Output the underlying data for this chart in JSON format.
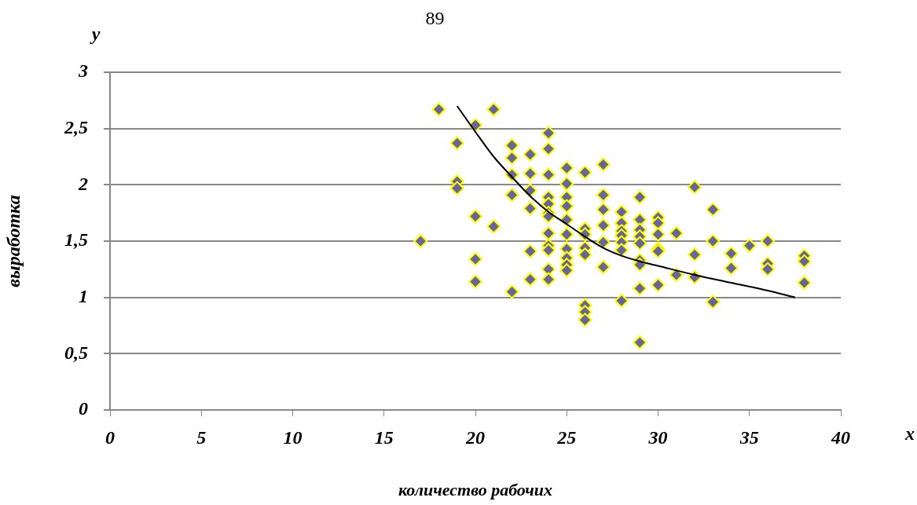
{
  "chart_data": {
    "type": "scatter",
    "xlabel": "количество рабочих",
    "ylabel": "выработка",
    "annotations": [
      "89",
      "y",
      "x"
    ],
    "xlim": [
      0,
      40
    ],
    "xticks": [
      0,
      5,
      10,
      15,
      20,
      25,
      30,
      35,
      40
    ],
    "ylim": [
      0,
      3
    ],
    "yticks": [
      0,
      {
        "value": 0.5,
        "label": "0,5"
      },
      1,
      {
        "value": 1.5,
        "label": "1,5"
      },
      2,
      {
        "value": 2.5,
        "label": "2,5"
      },
      3
    ],
    "grid": "y",
    "legend": false,
    "marker": "diamond",
    "series": [
      {
        "type": "scatter",
        "color": "#666699",
        "x": [
          17,
          18,
          19,
          19,
          19,
          20,
          20,
          20,
          20,
          21,
          21,
          22,
          22,
          22,
          22,
          22,
          23,
          23,
          23,
          23,
          23,
          23,
          24,
          24,
          24,
          24,
          24,
          24,
          24,
          24,
          24,
          24,
          24,
          24,
          25,
          25,
          25,
          25,
          25,
          25,
          25,
          25,
          25,
          25,
          26,
          26,
          26,
          26,
          26,
          26,
          26,
          26,
          27,
          27,
          27,
          27,
          27,
          27,
          28,
          28,
          28,
          28,
          28,
          28,
          28,
          29,
          29,
          29,
          29,
          29,
          29,
          29,
          29,
          29,
          30,
          30,
          30,
          30,
          30,
          30,
          31,
          31,
          32,
          32,
          32,
          33,
          33,
          33,
          34,
          34,
          35,
          36,
          36,
          36,
          38,
          38,
          38
        ],
        "values": [
          1.5,
          2.67,
          2.37,
          2.03,
          1.97,
          2.53,
          1.72,
          1.34,
          1.14,
          2.67,
          1.63,
          2.35,
          2.24,
          2.09,
          1.91,
          1.05,
          2.27,
          2.1,
          1.95,
          1.79,
          1.41,
          1.16,
          2.46,
          2.32,
          2.09,
          1.89,
          1.83,
          1.75,
          1.72,
          1.57,
          1.46,
          1.42,
          1.25,
          1.16,
          2.15,
          2.01,
          1.89,
          1.81,
          1.69,
          1.56,
          1.43,
          1.35,
          1.29,
          1.24,
          2.11,
          1.61,
          1.56,
          1.44,
          1.38,
          0.93,
          0.87,
          0.8,
          2.18,
          1.91,
          1.78,
          1.64,
          1.49,
          1.27,
          1.76,
          1.66,
          1.59,
          1.55,
          1.49,
          1.42,
          0.97,
          1.89,
          1.69,
          1.6,
          1.54,
          1.48,
          1.33,
          1.29,
          1.08,
          0.6,
          1.71,
          1.66,
          1.56,
          1.43,
          1.41,
          1.11,
          1.57,
          1.2,
          1.98,
          1.38,
          1.18,
          1.78,
          1.5,
          0.96,
          1.39,
          1.26,
          1.46,
          1.5,
          1.3,
          1.25,
          1.37,
          1.32,
          1.13
        ]
      },
      {
        "type": "line",
        "color": "#000000",
        "marker": "none",
        "line_style": "solid",
        "x": [
          19,
          20,
          21,
          22,
          23,
          24,
          25,
          26,
          27,
          28,
          29,
          30,
          32,
          34,
          36,
          37.5
        ],
        "values": [
          2.7,
          2.47,
          2.25,
          2.07,
          1.9,
          1.76,
          1.65,
          1.54,
          1.44,
          1.37,
          1.32,
          1.28,
          1.2,
          1.13,
          1.06,
          1.0
        ]
      }
    ]
  }
}
